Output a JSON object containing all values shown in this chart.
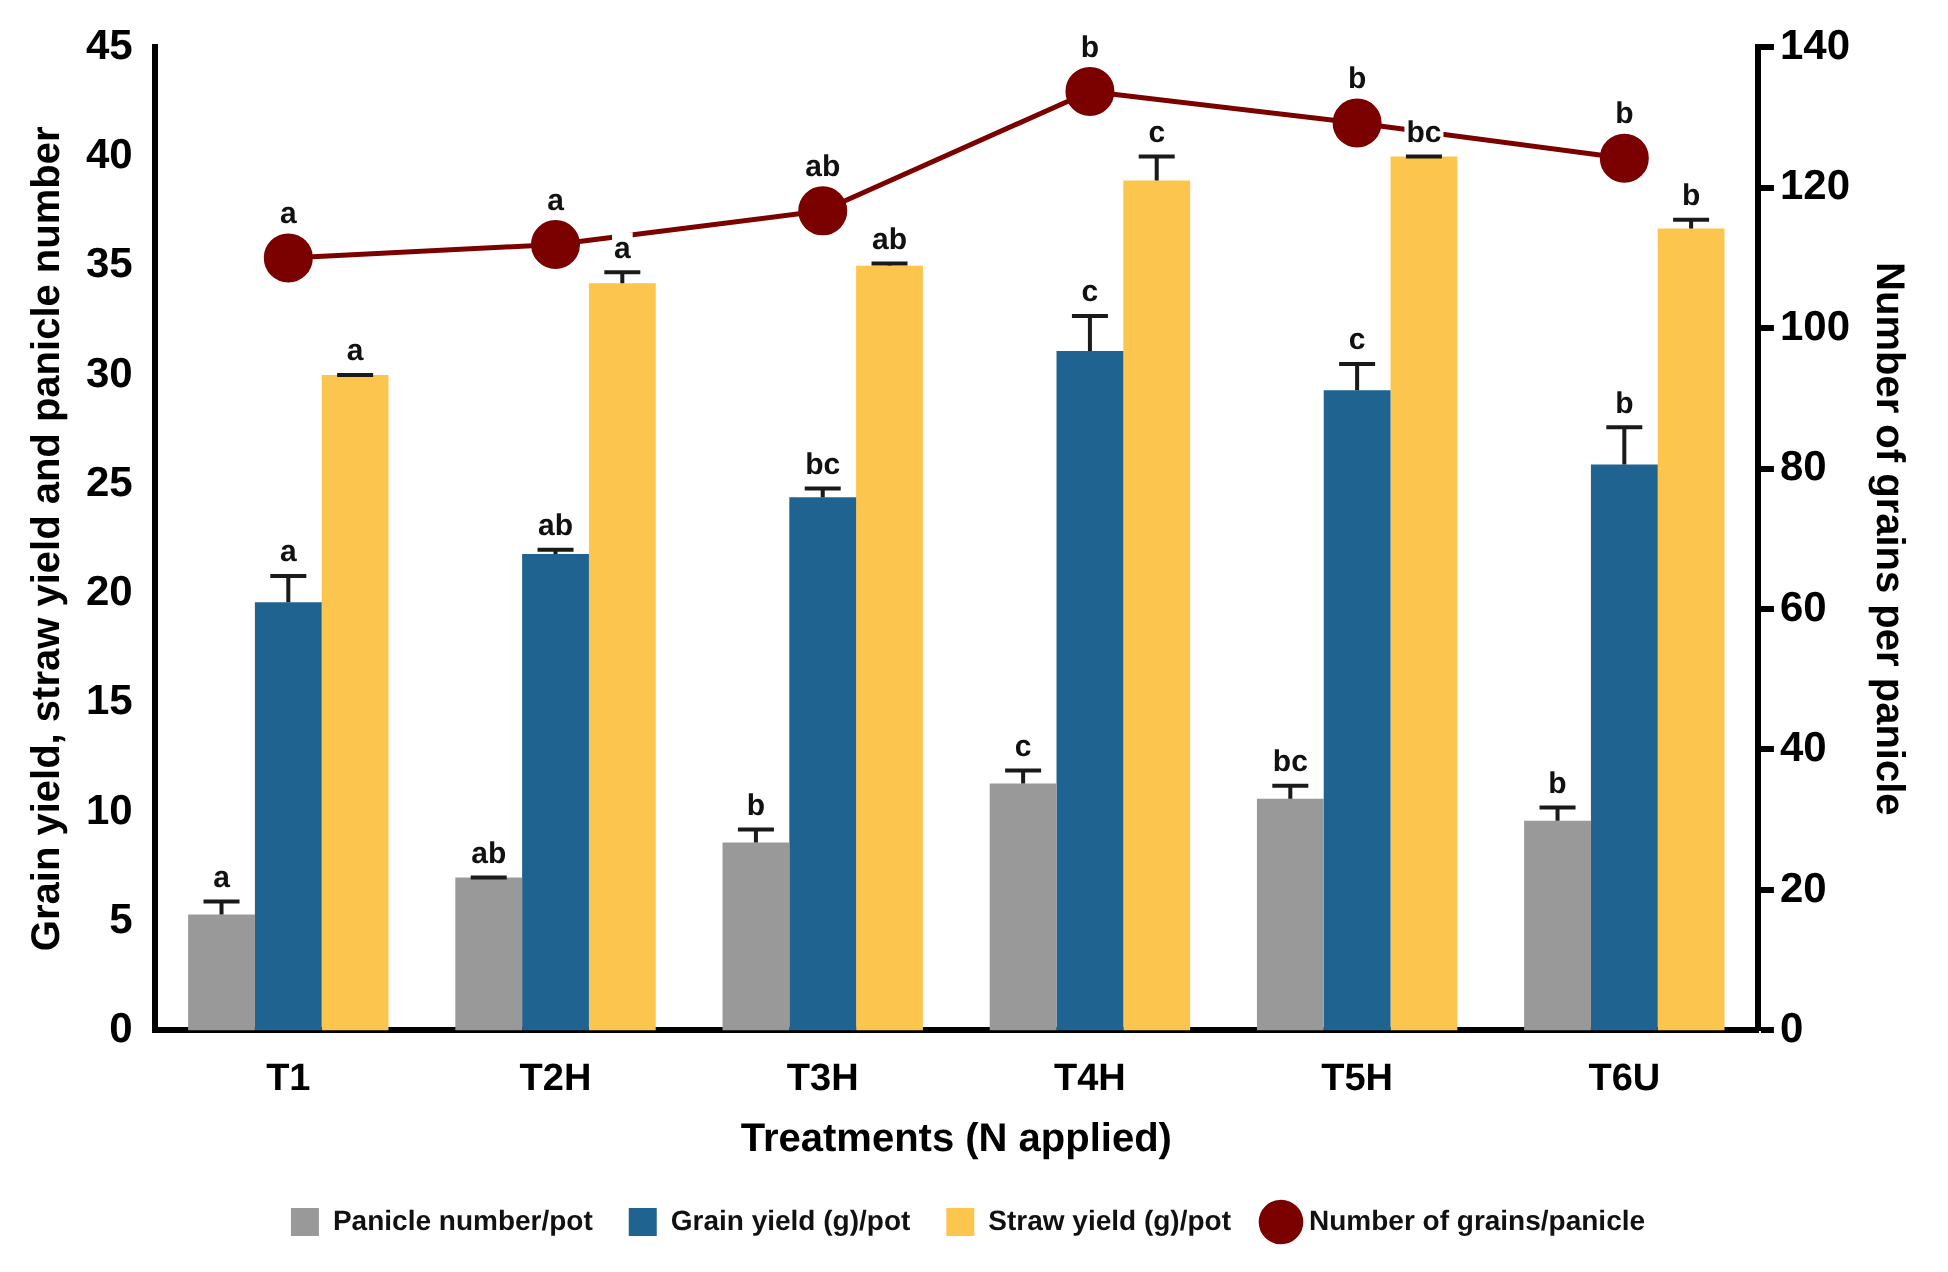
{
  "chart_data": {
    "type": "bar",
    "xlabel": "Treatments (N applied)",
    "ylabel": "Grain yield, straw yield and panicle number",
    "y2label": "Number of grains per panicle",
    "categories": [
      "T1",
      "T2H",
      "T3H",
      "T4H",
      "T5H",
      "T6U"
    ],
    "series": [
      {
        "name": "Panicle number/pot",
        "color": "#999999",
        "values": [
          5.3,
          7.0,
          8.6,
          11.3,
          10.6,
          9.6
        ],
        "errors": [
          0.6,
          0,
          0.6,
          0.6,
          0.6,
          0.6
        ],
        "value_labels": [
          "a",
          "ab",
          "b",
          "c",
          "bc",
          "b"
        ]
      },
      {
        "name": "Grain yield (g)/pot",
        "color": "#1f6391",
        "values": [
          19.6,
          21.8,
          24.4,
          31.1,
          29.3,
          25.9
        ],
        "errors": [
          1.2,
          0.2,
          0.4,
          1.6,
          1.2,
          1.7
        ],
        "value_labels": [
          "a",
          "ab",
          "bc",
          "c",
          "c",
          "b"
        ]
      },
      {
        "name": "Straw yield (g)/pot",
        "color": "#fcc54e",
        "values": [
          30.0,
          34.2,
          35.0,
          38.9,
          40.0,
          36.7
        ],
        "errors": [
          0,
          0.5,
          0.1,
          1.1,
          0,
          0.4
        ],
        "value_labels": [
          "a",
          "a",
          "ab",
          "c",
          "bc",
          "b"
        ]
      },
      {
        "name": "Number of grains/panicle",
        "type": "line",
        "axis": "y2",
        "color": "#7b0000",
        "marker": "circle",
        "values": [
          110.0,
          111.9,
          116.7,
          133.7,
          129.2,
          124.2
        ],
        "value_labels": [
          "a",
          "a",
          "ab",
          "b",
          "b",
          "b"
        ]
      }
    ],
    "ylim": [
      0,
      45
    ],
    "yticks": [
      0,
      5,
      10,
      15,
      20,
      25,
      30,
      35,
      40,
      45
    ],
    "y2lim": [
      0,
      140
    ],
    "y2ticks": [
      0,
      20,
      40,
      60,
      80,
      100,
      120,
      140
    ],
    "grid": false,
    "legend": "bottom"
  }
}
